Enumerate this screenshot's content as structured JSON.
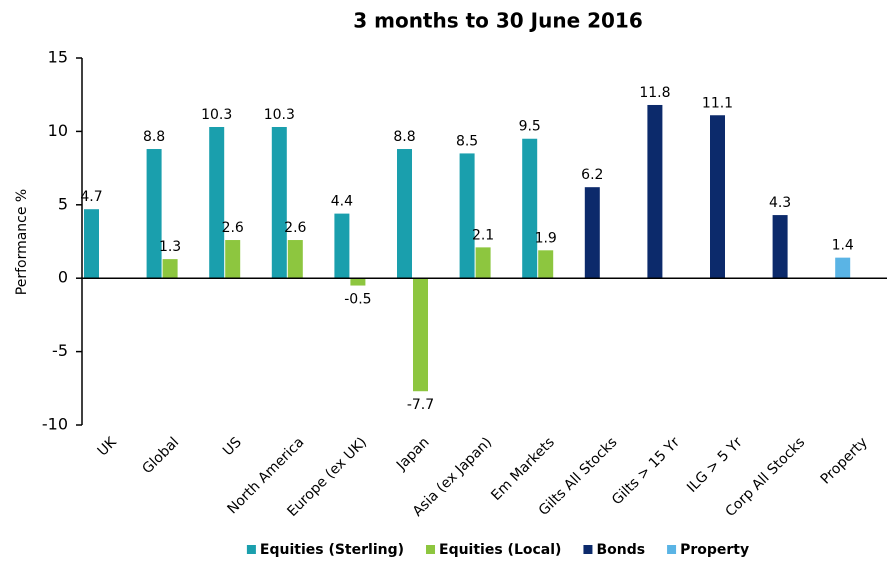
{
  "chart_data": {
    "type": "bar",
    "title": "3 months to 30 June 2016",
    "y_label": "Performance %",
    "categories": [
      "UK",
      "Global",
      "US",
      "North America",
      "Europe (ex UK)",
      "Japan",
      "Asia (ex Japan)",
      "Em Markets",
      "Gilts All Stocks",
      "Gilts > 15 Yr",
      "ILG > 5 Yr",
      "Corp All Stocks",
      "Property"
    ],
    "series": [
      {
        "name": "Equities (Sterling)",
        "color": "#1a9fad",
        "values": [
          4.7,
          8.8,
          10.3,
          10.3,
          4.4,
          8.8,
          8.5,
          9.5,
          null,
          null,
          null,
          null,
          null
        ]
      },
      {
        "name": "Equities (Local)",
        "color": "#8dc63f",
        "values": [
          null,
          1.3,
          2.6,
          2.6,
          -0.5,
          -7.7,
          2.1,
          1.9,
          null,
          null,
          null,
          null,
          null
        ]
      },
      {
        "name": "Bonds",
        "color": "#0c2a6b",
        "values": [
          null,
          null,
          null,
          null,
          null,
          null,
          null,
          null,
          6.2,
          11.8,
          11.1,
          4.3,
          null
        ]
      },
      {
        "name": "Property",
        "color": "#5ab4e5",
        "values": [
          null,
          null,
          null,
          null,
          null,
          null,
          null,
          null,
          null,
          null,
          null,
          null,
          1.4
        ]
      }
    ],
    "ylim": [
      -10,
      15
    ],
    "yticks": [
      -10,
      -5,
      0,
      5,
      10,
      15
    ],
    "grid": false,
    "legend": "bottom"
  }
}
